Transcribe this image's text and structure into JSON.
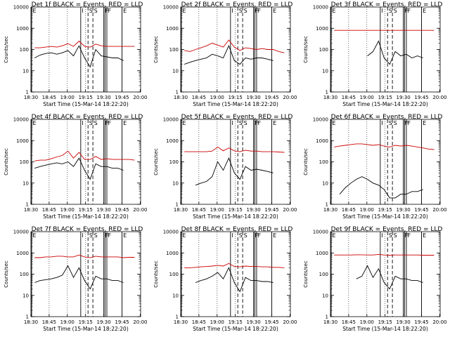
{
  "figure": {
    "title_template": "Det {d} BLACK = Events, RED = LLD"
  },
  "chart_data": [
    {
      "type": "line",
      "title": "Det 1f BLACK = Events, RED = LLD",
      "xlabel": "Start Time (15-Mar-14 18:22:20)",
      "ylabel": "Counts/sec",
      "yscale": "log",
      "ylim": [
        1,
        10000
      ],
      "x_ticks": [
        "18:30",
        "18:45",
        "19:00",
        "19:15",
        "19:30",
        "19:45",
        "20:00"
      ],
      "y_ticks": [
        "1",
        "10",
        "100",
        "1000",
        "10000"
      ],
      "markers": [
        "E",
        "I",
        "S",
        "S",
        "F",
        "F",
        "F",
        "E"
      ],
      "series": [
        {
          "name": "LLD",
          "color": "#cc0000",
          "values": [
            120,
            120,
            130,
            140,
            130,
            150,
            190,
            140,
            250,
            140,
            130,
            180,
            150,
            140,
            140,
            140,
            140,
            140,
            140
          ]
        },
        {
          "name": "Events",
          "color": "#000000",
          "values": [
            40,
            55,
            65,
            70,
            60,
            70,
            90,
            50,
            150,
            40,
            15,
            100,
            50,
            45,
            40,
            40,
            30,
            null,
            null
          ]
        }
      ]
    },
    {
      "type": "line",
      "title": "Det 2f BLACK = Events, RED = LLD",
      "xlabel": "Start Time (15-Mar-14 18:22:20)",
      "ylabel": "Counts/sec",
      "yscale": "log",
      "ylim": [
        1,
        10000
      ],
      "x_ticks": [
        "18:30",
        "18:45",
        "19:00",
        "19:15",
        "19:30",
        "19:45",
        "20:00"
      ],
      "y_ticks": [
        "1",
        "10",
        "100",
        "1000",
        "10000"
      ],
      "markers": [
        "E",
        "I",
        "S",
        "S",
        "F",
        "F",
        "F",
        "E"
      ],
      "series": [
        {
          "name": "LLD",
          "color": "#cc0000",
          "values": [
            90,
            80,
            100,
            120,
            150,
            200,
            160,
            130,
            280,
            130,
            90,
            120,
            110,
            100,
            110,
            100,
            100,
            80,
            70
          ]
        },
        {
          "name": "Events",
          "color": "#000000",
          "values": [
            20,
            25,
            30,
            35,
            40,
            60,
            50,
            40,
            150,
            30,
            20,
            40,
            35,
            40,
            40,
            35,
            30,
            null,
            null
          ]
        }
      ]
    },
    {
      "type": "line",
      "title": "Det 3f BLACK = Events, RED = LLD",
      "xlabel": "Start Time (15-Mar-14 18:22:20)",
      "ylabel": "Counts/sec",
      "yscale": "log",
      "ylim": [
        1,
        10000
      ],
      "x_ticks": [
        "18:30",
        "18:45",
        "19:00",
        "19:15",
        "19:30",
        "19:45",
        "20:00"
      ],
      "y_ticks": [
        "1",
        "10",
        "100",
        "1000",
        "10000"
      ],
      "markers": [
        "E",
        "I",
        "S",
        "S",
        "F",
        "F",
        "F",
        "E"
      ],
      "series": [
        {
          "name": "LLD",
          "color": "#cc0000",
          "values": [
            800,
            800,
            800,
            800,
            800,
            800,
            800,
            800,
            800,
            800,
            800,
            800,
            800,
            800,
            800,
            800,
            800,
            800,
            800
          ]
        },
        {
          "name": "Events",
          "color": "#000000",
          "values": [
            null,
            null,
            null,
            null,
            null,
            null,
            50,
            80,
            250,
            40,
            20,
            80,
            50,
            60,
            40,
            50,
            40,
            null,
            null
          ]
        }
      ]
    },
    {
      "type": "line",
      "title": "Det 4f BLACK = Events, RED = LLD",
      "xlabel": "Start Time (15-Mar-14 18:22:20)",
      "ylabel": "Counts/sec",
      "yscale": "log",
      "ylim": [
        1,
        10000
      ],
      "x_ticks": [
        "18:30",
        "18:45",
        "19:00",
        "19:15",
        "19:30",
        "19:45",
        "20:00"
      ],
      "y_ticks": [
        "1",
        "10",
        "100",
        "1000",
        "10000"
      ],
      "markers": [
        "E",
        "I",
        "S",
        "S",
        "F",
        "F",
        "F",
        "E"
      ],
      "series": [
        {
          "name": "LLD",
          "color": "#cc0000",
          "values": [
            110,
            120,
            120,
            140,
            170,
            200,
            320,
            150,
            280,
            130,
            130,
            180,
            130,
            140,
            130,
            130,
            130,
            130,
            120
          ]
        },
        {
          "name": "Events",
          "color": "#000000",
          "values": [
            50,
            60,
            70,
            80,
            90,
            80,
            100,
            60,
            150,
            40,
            15,
            80,
            60,
            60,
            50,
            50,
            40,
            null,
            null
          ]
        }
      ]
    },
    {
      "type": "line",
      "title": "Det 5f BLACK = Events, RED = LLD",
      "xlabel": "Start Time (15-Mar-14 18:22:20)",
      "ylabel": "Counts/sec",
      "yscale": "log",
      "ylim": [
        1,
        10000
      ],
      "x_ticks": [
        "18:30",
        "18:45",
        "19:00",
        "19:15",
        "19:30",
        "19:45",
        "20:00"
      ],
      "y_ticks": [
        "1",
        "10",
        "100",
        "1000",
        "10000"
      ],
      "markers": [
        "E",
        "I",
        "S",
        "S",
        "F",
        "F",
        "F",
        "E"
      ],
      "series": [
        {
          "name": "LLD",
          "color": "#cc0000",
          "values": [
            300,
            300,
            300,
            300,
            300,
            320,
            500,
            330,
            450,
            330,
            300,
            350,
            320,
            320,
            300,
            300,
            300,
            290,
            280
          ]
        },
        {
          "name": "Events",
          "color": "#000000",
          "values": [
            null,
            null,
            8,
            10,
            12,
            20,
            100,
            40,
            150,
            30,
            15,
            60,
            40,
            45,
            40,
            35,
            30,
            null,
            null
          ]
        }
      ]
    },
    {
      "type": "line",
      "title": "Det 6f BLACK = Events, RED = LLD",
      "xlabel": "Start Time (15-Mar-14 18:22:20)",
      "ylabel": "Counts/sec",
      "yscale": "log",
      "ylim": [
        1,
        10000
      ],
      "x_ticks": [
        "18:30",
        "18:45",
        "19:00",
        "19:15",
        "19:30",
        "19:45",
        "20:00"
      ],
      "y_ticks": [
        "1",
        "10",
        "100",
        "1000",
        "10000"
      ],
      "markers": [
        "E",
        "I",
        "S",
        "S",
        "F",
        "F",
        "F",
        "E"
      ],
      "series": [
        {
          "name": "LLD",
          "color": "#cc0000",
          "values": [
            500,
            550,
            600,
            650,
            700,
            700,
            650,
            600,
            650,
            550,
            500,
            600,
            550,
            600,
            550,
            500,
            450,
            400,
            380
          ]
        },
        {
          "name": "Events",
          "color": "#000000",
          "values": [
            null,
            3,
            6,
            10,
            15,
            20,
            15,
            10,
            8,
            5,
            2,
            2,
            3,
            3,
            4,
            4,
            5,
            null,
            null
          ]
        }
      ]
    },
    {
      "type": "line",
      "title": "Det 7f BLACK = Events, RED = LLD",
      "xlabel": "Start Time (15-Mar-14 18:22:20)",
      "ylabel": "Counts/sec",
      "yscale": "log",
      "ylim": [
        1,
        10000
      ],
      "x_ticks": [
        "18:30",
        "18:45",
        "19:00",
        "19:15",
        "19:30",
        "19:45",
        "20:00"
      ],
      "y_ticks": [
        "1",
        "10",
        "100",
        "1000",
        "10000"
      ],
      "markers": [
        "E",
        "I",
        "S",
        "S",
        "F",
        "F",
        "F",
        "E"
      ],
      "series": [
        {
          "name": "LLD",
          "color": "#cc0000",
          "values": [
            600,
            600,
            650,
            650,
            700,
            700,
            650,
            650,
            800,
            650,
            600,
            700,
            650,
            650,
            650,
            650,
            600,
            620,
            620
          ]
        },
        {
          "name": "Events",
          "color": "#000000",
          "values": [
            40,
            50,
            55,
            60,
            70,
            90,
            250,
            70,
            200,
            50,
            20,
            80,
            60,
            60,
            50,
            50,
            40,
            null,
            null
          ]
        }
      ]
    },
    {
      "type": "line",
      "title": "Det 8f BLACK = Events, RED = LLD",
      "xlabel": "Start Time (15-Mar-14 18:22:20)",
      "ylabel": "Counts/sec",
      "yscale": "log",
      "ylim": [
        1,
        10000
      ],
      "x_ticks": [
        "18:30",
        "18:45",
        "19:00",
        "19:15",
        "19:30",
        "19:45",
        "20:00"
      ],
      "y_ticks": [
        "1",
        "10",
        "100",
        "1000",
        "10000"
      ],
      "markers": [
        "E",
        "I",
        "S",
        "S",
        "F",
        "F",
        "F",
        "E"
      ],
      "series": [
        {
          "name": "LLD",
          "color": "#cc0000",
          "values": [
            200,
            200,
            210,
            220,
            230,
            240,
            260,
            240,
            320,
            230,
            220,
            240,
            230,
            230,
            220,
            220,
            210,
            210,
            200
          ]
        },
        {
          "name": "Events",
          "color": "#000000",
          "values": [
            null,
            null,
            40,
            50,
            60,
            80,
            120,
            60,
            200,
            40,
            15,
            70,
            50,
            50,
            45,
            45,
            40,
            null,
            null
          ]
        }
      ]
    },
    {
      "type": "line",
      "title": "Det 9f BLACK = Events, RED = LLD",
      "xlabel": "Start Time (15-Mar-14 18:22:20)",
      "ylabel": "Counts/sec",
      "yscale": "log",
      "ylim": [
        1,
        10000
      ],
      "x_ticks": [
        "18:30",
        "18:45",
        "19:00",
        "19:15",
        "19:30",
        "19:45",
        "20:00"
      ],
      "y_ticks": [
        "1",
        "10",
        "100",
        "1000",
        "10000"
      ],
      "markers": [
        "E",
        "I",
        "S",
        "S",
        "F",
        "F",
        "F",
        "E"
      ],
      "series": [
        {
          "name": "LLD",
          "color": "#cc0000",
          "values": [
            800,
            800,
            800,
            800,
            820,
            820,
            800,
            800,
            850,
            800,
            780,
            800,
            800,
            800,
            800,
            800,
            780,
            780,
            780
          ]
        },
        {
          "name": "Events",
          "color": "#000000",
          "values": [
            null,
            null,
            null,
            null,
            60,
            80,
            250,
            70,
            180,
            40,
            20,
            80,
            60,
            60,
            50,
            50,
            40,
            null,
            null
          ]
        }
      ]
    }
  ]
}
